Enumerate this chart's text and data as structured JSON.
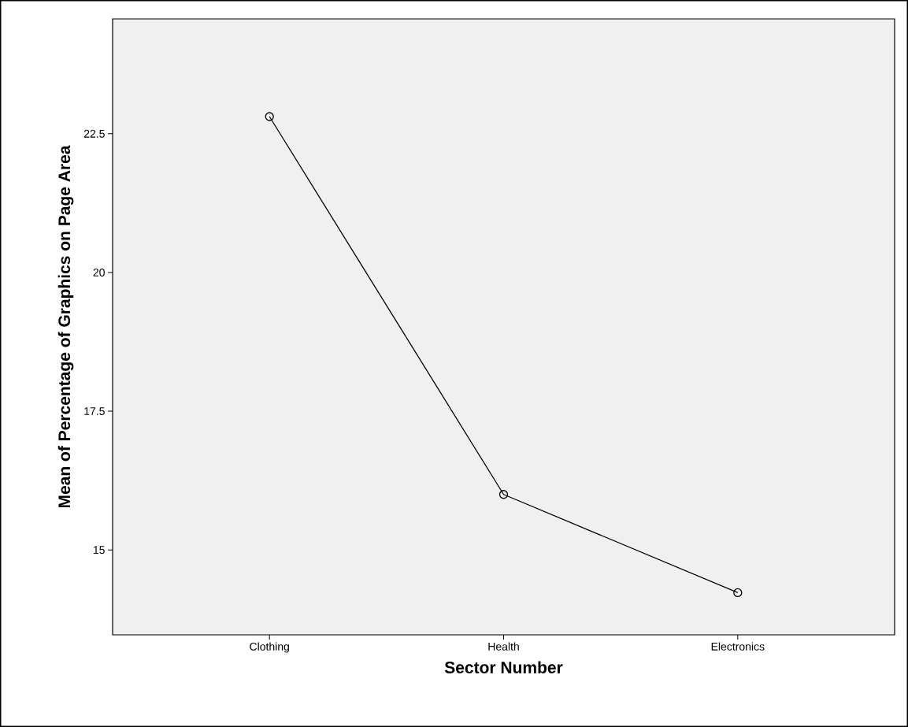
{
  "chart_data": {
    "type": "line",
    "xlabel": "Sector Number",
    "ylabel": "Mean of Percentage of Graphics on Page Area",
    "categories": [
      "Clothing",
      "Health",
      "Electronics"
    ],
    "series": [
      {
        "color": "#000000",
        "values": [
          22.81,
          16.0,
          14.23
        ]
      }
    ],
    "ylim": [
      13.47,
      24.57
    ],
    "yticks": [
      15,
      17.5,
      20,
      22.5
    ],
    "marker": "circle",
    "line_style": "solid"
  }
}
